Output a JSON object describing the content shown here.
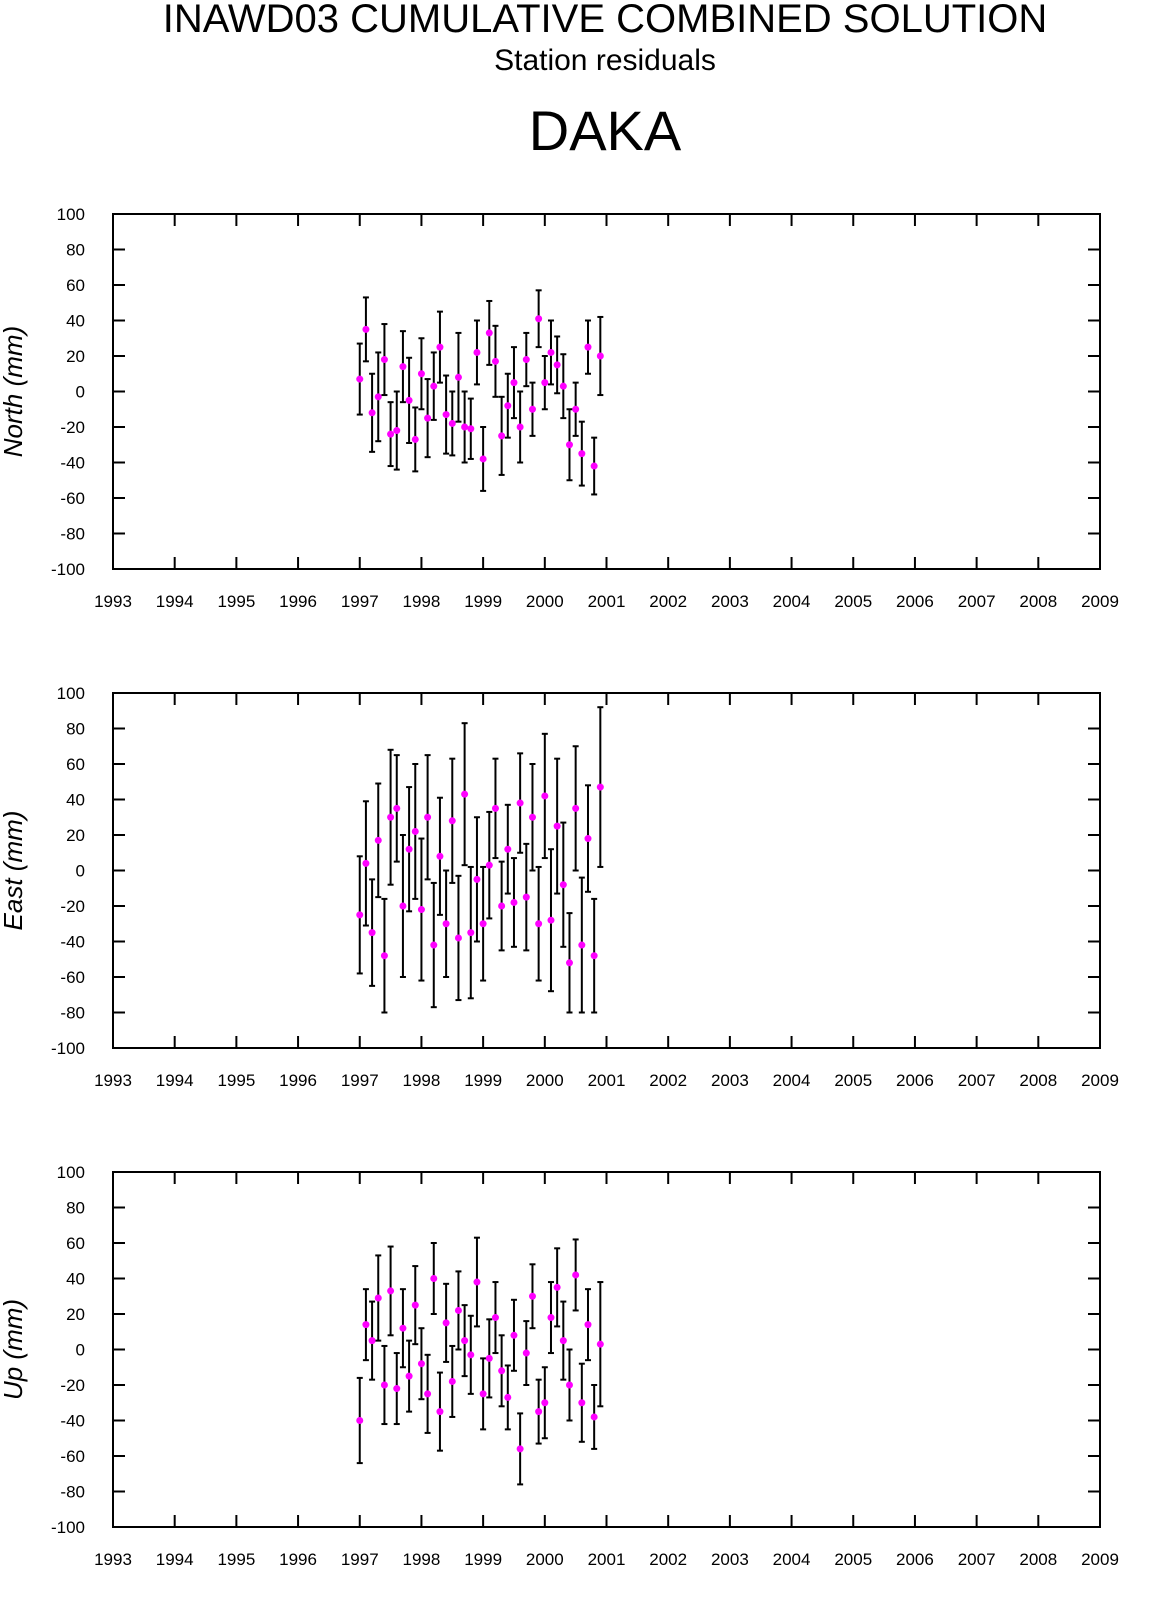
{
  "title": "INAWD03 CUMULATIVE COMBINED SOLUTION",
  "subtitle": "Station residuals",
  "station": "DAKA",
  "chart_data": [
    {
      "type": "errorbar",
      "ylabel": "North (mm)",
      "color": "#ff00ff",
      "x": [
        1997.0,
        1997.1,
        1997.2,
        1997.3,
        1997.4,
        1997.5,
        1997.6,
        1997.7,
        1997.8,
        1997.9,
        1998.0,
        1998.1,
        1998.2,
        1998.3,
        1998.4,
        1998.5,
        1998.6,
        1998.7,
        1998.8,
        1998.9,
        1999.0,
        1999.1,
        1999.2,
        1999.3,
        1999.4,
        1999.5,
        1999.6,
        1999.7,
        1999.8,
        1999.9,
        2000.0,
        2000.1,
        2000.2,
        2000.3,
        2000.4,
        2000.5,
        2000.6,
        2000.7,
        2000.8,
        2000.9
      ],
      "values": [
        7,
        35,
        -12,
        -3,
        18,
        -24,
        -22,
        14,
        -5,
        -27,
        10,
        -15,
        3,
        25,
        -13,
        -18,
        8,
        -20,
        -21,
        22,
        -38,
        33,
        17,
        -25,
        -8,
        5,
        -20,
        18,
        -10,
        41,
        5,
        22,
        15,
        3,
        -30,
        -10,
        -35,
        25,
        -42,
        20
      ],
      "errors": [
        20,
        18,
        22,
        25,
        20,
        18,
        22,
        20,
        24,
        18,
        20,
        22,
        19,
        20,
        22,
        18,
        25,
        20,
        17,
        18,
        18,
        18,
        20,
        22,
        18,
        20,
        20,
        15,
        15,
        16,
        15,
        18,
        16,
        18,
        20,
        15,
        18,
        15,
        16,
        22
      ],
      "xlim": [
        1993,
        2009
      ],
      "xticks": [
        1993,
        1994,
        1995,
        1996,
        1997,
        1998,
        1999,
        2000,
        2001,
        2002,
        2003,
        2004,
        2005,
        2006,
        2007,
        2008,
        2009
      ],
      "ylim": [
        -100,
        100
      ],
      "yticks": [
        -100,
        -80,
        -60,
        -40,
        -20,
        0,
        20,
        40,
        60,
        80,
        100
      ]
    },
    {
      "type": "errorbar",
      "ylabel": "East (mm)",
      "color": "#ff00ff",
      "x": [
        1997.0,
        1997.1,
        1997.2,
        1997.3,
        1997.4,
        1997.5,
        1997.6,
        1997.7,
        1997.8,
        1997.9,
        1998.0,
        1998.1,
        1998.2,
        1998.3,
        1998.4,
        1998.5,
        1998.6,
        1998.7,
        1998.8,
        1998.9,
        1999.0,
        1999.1,
        1999.2,
        1999.3,
        1999.4,
        1999.5,
        1999.6,
        1999.7,
        1999.8,
        1999.9,
        2000.0,
        2000.1,
        2000.2,
        2000.3,
        2000.4,
        2000.5,
        2000.6,
        2000.7,
        2000.8,
        2000.9
      ],
      "values": [
        -25,
        4,
        -35,
        17,
        -48,
        30,
        35,
        -20,
        12,
        22,
        -22,
        30,
        -42,
        8,
        -30,
        28,
        -38,
        43,
        -35,
        -5,
        -30,
        3,
        35,
        -20,
        12,
        -18,
        38,
        -15,
        30,
        -30,
        42,
        -28,
        25,
        -8,
        -52,
        35,
        -42,
        18,
        -48,
        47
      ],
      "errors": [
        33,
        35,
        30,
        32,
        32,
        38,
        30,
        40,
        35,
        38,
        40,
        35,
        35,
        33,
        30,
        35,
        35,
        40,
        37,
        35,
        32,
        30,
        28,
        25,
        25,
        25,
        28,
        30,
        30,
        32,
        35,
        40,
        38,
        35,
        28,
        35,
        38,
        30,
        32,
        45
      ],
      "xlim": [
        1993,
        2009
      ],
      "xticks": [
        1993,
        1994,
        1995,
        1996,
        1997,
        1998,
        1999,
        2000,
        2001,
        2002,
        2003,
        2004,
        2005,
        2006,
        2007,
        2008,
        2009
      ],
      "ylim": [
        -100,
        100
      ],
      "yticks": [
        -100,
        -80,
        -60,
        -40,
        -20,
        0,
        20,
        40,
        60,
        80,
        100
      ]
    },
    {
      "type": "errorbar",
      "ylabel": "Up (mm)",
      "color": "#ff00ff",
      "x": [
        1997.0,
        1997.1,
        1997.2,
        1997.3,
        1997.4,
        1997.5,
        1997.6,
        1997.7,
        1997.8,
        1997.9,
        1998.0,
        1998.1,
        1998.2,
        1998.3,
        1998.4,
        1998.5,
        1998.6,
        1998.7,
        1998.8,
        1998.9,
        1999.0,
        1999.1,
        1999.2,
        1999.3,
        1999.4,
        1999.5,
        1999.6,
        1999.7,
        1999.8,
        1999.9,
        2000.0,
        2000.1,
        2000.2,
        2000.3,
        2000.4,
        2000.5,
        2000.6,
        2000.7,
        2000.8,
        2000.9
      ],
      "values": [
        -40,
        14,
        5,
        29,
        -20,
        33,
        -22,
        12,
        -15,
        25,
        -8,
        -25,
        40,
        -35,
        15,
        -18,
        22,
        5,
        -3,
        38,
        -25,
        -5,
        18,
        -12,
        -27,
        8,
        -56,
        -2,
        30,
        -35,
        -30,
        18,
        35,
        5,
        -20,
        42,
        -30,
        14,
        -38,
        3
      ],
      "errors": [
        24,
        20,
        22,
        24,
        22,
        25,
        20,
        22,
        20,
        22,
        20,
        22,
        20,
        22,
        22,
        20,
        22,
        20,
        22,
        25,
        20,
        22,
        20,
        20,
        18,
        20,
        20,
        18,
        18,
        18,
        20,
        20,
        22,
        22,
        20,
        20,
        22,
        20,
        18,
        35
      ],
      "xlim": [
        1993,
        2009
      ],
      "xticks": [
        1993,
        1994,
        1995,
        1996,
        1997,
        1998,
        1999,
        2000,
        2001,
        2002,
        2003,
        2004,
        2005,
        2006,
        2007,
        2008,
        2009
      ],
      "ylim": [
        -100,
        100
      ],
      "yticks": [
        -100,
        -80,
        -60,
        -40,
        -20,
        0,
        20,
        40,
        60,
        80,
        100
      ]
    }
  ]
}
